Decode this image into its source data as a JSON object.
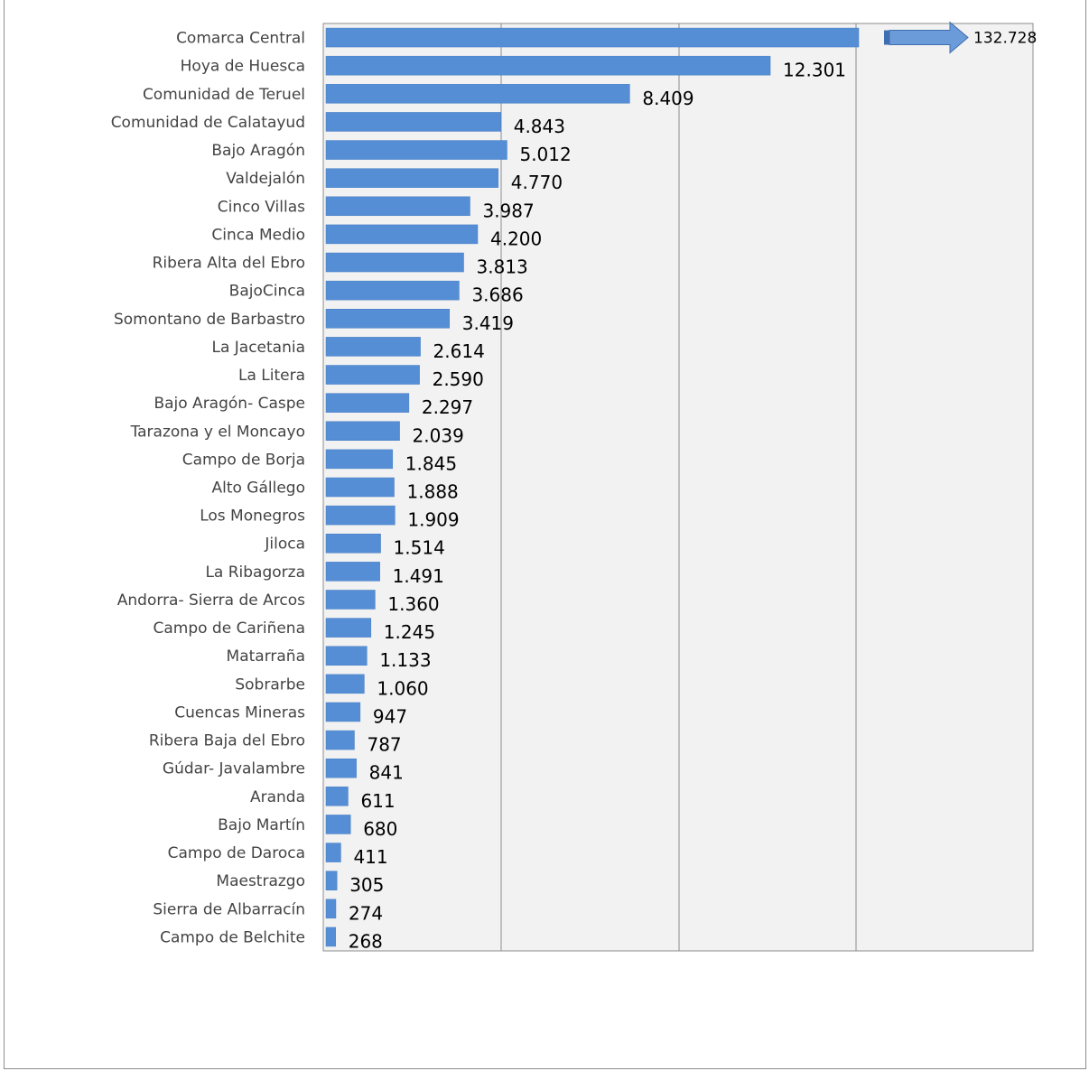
{
  "colors": {
    "bar": "#558ed5",
    "bar_edge": "#4a7fc4",
    "plot_bg": "#f2f2f2",
    "grid": "#8c8c8c",
    "arrow_fill": "#6b9bd9",
    "arrow_stroke": "#3f6fb0"
  },
  "chart_data": {
    "type": "bar",
    "orientation": "horizontal",
    "title": "",
    "xlabel": "",
    "ylabel": "",
    "grid": true,
    "axis_break": "Comarca Central bar truncated; value indicated with arrow",
    "categories": [
      "Comarca Central",
      "Hoya de Huesca",
      "Comunidad de Teruel",
      "Comunidad de Calatayud",
      "Bajo Aragón",
      "Valdejalón",
      "Cinco Villas",
      "Cinca Medio",
      "Ribera Alta del Ebro",
      "BajoCinca",
      "Somontano de Barbastro",
      "La Jacetania",
      "La Litera",
      "Bajo Aragón- Caspe",
      "Tarazona y el Moncayo",
      "Campo de Borja",
      "Alto Gállego",
      "Los Monegros",
      "Jiloca",
      "La Ribagorza",
      "Andorra- Sierra de Arcos",
      "Campo de Cariñena",
      "Matarraña",
      "Sobrarbe",
      "Cuencas Mineras",
      "Ribera Baja del Ebro",
      "Gúdar- Javalambre",
      "Aranda",
      "Bajo Martín",
      "Campo de Daroca",
      "Maestrazgo",
      "Sierra de Albarracín",
      "Campo de Belchite"
    ],
    "values": [
      132728,
      12301,
      8409,
      4843,
      5012,
      4770,
      3987,
      4200,
      3813,
      3686,
      3419,
      2614,
      2590,
      2297,
      2039,
      1845,
      1888,
      1909,
      1514,
      1491,
      1360,
      1245,
      1133,
      1060,
      947,
      787,
      841,
      611,
      680,
      411,
      305,
      274,
      268
    ],
    "value_labels": [
      "132.728",
      "12.301",
      "8.409",
      "4.843",
      "5.012",
      "4.770",
      "3.987",
      "4.200",
      "3.813",
      "3.686",
      "3.419",
      "2.614",
      "2.590",
      "2.297",
      "2.039",
      "1.845",
      "1.888",
      "1.909",
      "1.514",
      "1.491",
      "1.360",
      "1.245",
      "1.133",
      "1.060",
      "947",
      "787",
      "841",
      "611",
      "680",
      "411",
      "305",
      "274",
      "268"
    ]
  }
}
